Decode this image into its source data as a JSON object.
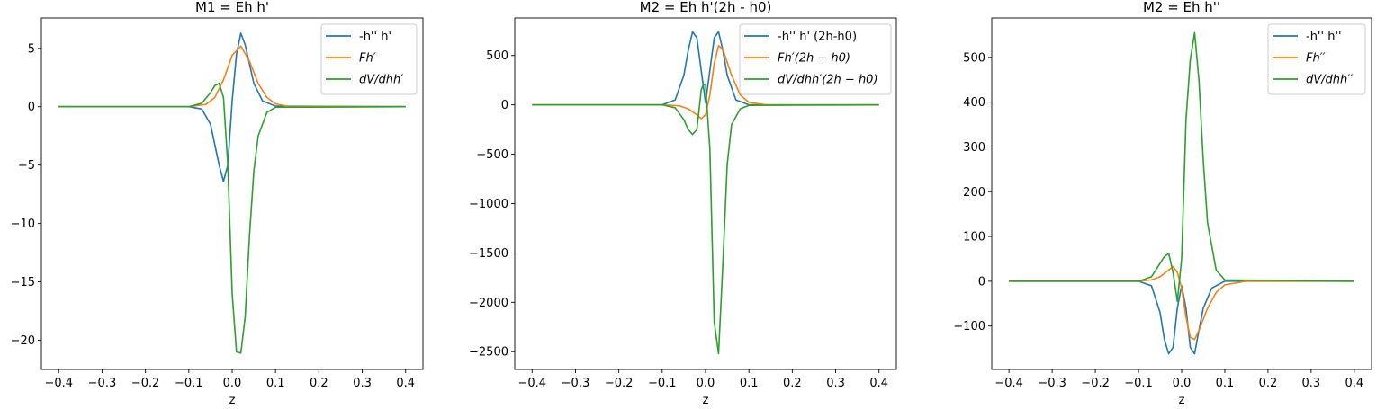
{
  "colors": {
    "series1": "#1f77b4",
    "series2": "#ff7f0e",
    "series3": "#2ca02c"
  },
  "chart_data": [
    {
      "type": "line",
      "title": "M1 = Eh h'",
      "xlabel": "z",
      "ylabel": "",
      "xlim": [
        -0.44,
        0.44
      ],
      "ylim": [
        -22.5,
        7.6
      ],
      "xticks": [
        -0.4,
        -0.3,
        -0.2,
        -0.1,
        0.0,
        0.1,
        0.2,
        0.3,
        0.4
      ],
      "xtick_labels": [
        "−0.4",
        "−0.3",
        "−0.2",
        "−0.1",
        "0.0",
        "0.1",
        "0.2",
        "0.3",
        "0.4"
      ],
      "yticks": [
        5,
        0,
        -5,
        -10,
        -15,
        -20
      ],
      "ytick_labels": [
        "5",
        "0",
        "−5",
        "−10",
        "−15",
        "−20"
      ],
      "legend_position": "top-right",
      "series": [
        {
          "name": "-h'' h'",
          "color": "#1f77b4",
          "x": [
            -0.4,
            -0.1,
            -0.07,
            -0.05,
            -0.03,
            -0.02,
            -0.01,
            0.0,
            0.01,
            0.02,
            0.03,
            0.05,
            0.07,
            0.1,
            0.4
          ],
          "y": [
            0,
            0,
            -0.2,
            -1.5,
            -5.0,
            -6.4,
            -5.0,
            0.5,
            4.5,
            6.3,
            5.3,
            2.0,
            0.5,
            0.05,
            0
          ]
        },
        {
          "name": "Fh′",
          "color": "#ff7f0e",
          "x": [
            -0.4,
            -0.1,
            -0.06,
            -0.04,
            -0.02,
            0.0,
            0.02,
            0.04,
            0.06,
            0.08,
            0.1,
            0.13,
            0.4
          ],
          "y": [
            0,
            0,
            0.2,
            0.8,
            2.3,
            4.4,
            5.2,
            3.9,
            2.0,
            0.8,
            0.25,
            0.02,
            0
          ]
        },
        {
          "name": "dV/dhh′",
          "color": "#2ca02c",
          "x": [
            -0.4,
            -0.1,
            -0.07,
            -0.05,
            -0.04,
            -0.03,
            -0.02,
            -0.01,
            0.0,
            0.01,
            0.02,
            0.03,
            0.04,
            0.05,
            0.06,
            0.08,
            0.1,
            0.4
          ],
          "y": [
            0,
            0,
            0.3,
            1.2,
            1.8,
            2.0,
            0.8,
            -5.0,
            -16.0,
            -21.0,
            -21.1,
            -18.0,
            -11.0,
            -5.5,
            -2.5,
            -0.5,
            -0.05,
            0
          ]
        }
      ]
    },
    {
      "type": "line",
      "title": "M2 = Eh h'(2h - h0)",
      "xlabel": "z",
      "ylabel": "",
      "xlim": [
        -0.44,
        0.44
      ],
      "ylim": [
        -2680,
        880
      ],
      "xticks": [
        -0.4,
        -0.3,
        -0.2,
        -0.1,
        0.0,
        0.1,
        0.2,
        0.3,
        0.4
      ],
      "xtick_labels": [
        "−0.4",
        "−0.3",
        "−0.2",
        "−0.1",
        "0.0",
        "0.1",
        "0.2",
        "0.3",
        "0.4"
      ],
      "yticks": [
        500,
        0,
        -500,
        -1000,
        -1500,
        -2000,
        -2500
      ],
      "ytick_labels": [
        "500",
        "0",
        "−500",
        "−1000",
        "−1500",
        "−2000",
        "−2500"
      ],
      "legend_position": "top-right",
      "series": [
        {
          "name": "-h'' h' (2h-h0)",
          "color": "#1f77b4",
          "x": [
            -0.4,
            -0.1,
            -0.07,
            -0.05,
            -0.04,
            -0.03,
            -0.02,
            -0.01,
            0.0,
            0.01,
            0.02,
            0.03,
            0.04,
            0.05,
            0.07,
            0.1,
            0.4
          ],
          "y": [
            0,
            0,
            50,
            300,
            550,
            740,
            680,
            350,
            20,
            350,
            680,
            740,
            550,
            300,
            50,
            0,
            0
          ]
        },
        {
          "name": "Fh′(2h − h0)",
          "color": "#ff7f0e",
          "x": [
            -0.4,
            -0.1,
            -0.06,
            -0.04,
            -0.02,
            -0.01,
            0.0,
            0.01,
            0.02,
            0.03,
            0.04,
            0.06,
            0.08,
            0.1,
            0.14,
            0.4
          ],
          "y": [
            0,
            0,
            -10,
            -40,
            -100,
            -140,
            -100,
            100,
            420,
            600,
            560,
            300,
            100,
            25,
            0,
            0
          ]
        },
        {
          "name": "dV/dhh′(2h − h0)",
          "color": "#2ca02c",
          "x": [
            -0.4,
            -0.1,
            -0.07,
            -0.05,
            -0.04,
            -0.03,
            -0.02,
            -0.01,
            -0.005,
            0.0,
            0.01,
            0.02,
            0.03,
            0.04,
            0.05,
            0.06,
            0.08,
            0.1,
            0.4
          ],
          "y": [
            0,
            0,
            -30,
            -150,
            -250,
            -300,
            -250,
            150,
            210,
            200,
            -450,
            -2200,
            -2520,
            -1600,
            -600,
            -200,
            -40,
            -5,
            0
          ]
        }
      ]
    },
    {
      "type": "line",
      "title": "M2 = Eh h''",
      "xlabel": "z",
      "ylabel": "",
      "xlim": [
        -0.44,
        0.44
      ],
      "ylim": [
        -197,
        588
      ],
      "xticks": [
        -0.4,
        -0.3,
        -0.2,
        -0.1,
        0.0,
        0.1,
        0.2,
        0.3,
        0.4
      ],
      "xtick_labels": [
        "−0.4",
        "−0.3",
        "−0.2",
        "−0.1",
        "0.0",
        "0.1",
        "0.2",
        "0.3",
        "0.4"
      ],
      "yticks": [
        500,
        400,
        300,
        200,
        100,
        0,
        -100
      ],
      "ytick_labels": [
        "500",
        "400",
        "300",
        "200",
        "100",
        "0",
        "−100"
      ],
      "legend_position": "top-right",
      "series": [
        {
          "name": "-h'' h''",
          "color": "#1f77b4",
          "x": [
            -0.4,
            -0.1,
            -0.07,
            -0.05,
            -0.04,
            -0.03,
            -0.02,
            -0.01,
            0.0,
            0.01,
            0.02,
            0.03,
            0.04,
            0.05,
            0.07,
            0.1,
            0.4
          ],
          "y": [
            0,
            0,
            -10,
            -70,
            -130,
            -162,
            -148,
            -60,
            -10,
            -60,
            -148,
            -162,
            -110,
            -60,
            -15,
            0,
            0
          ]
        },
        {
          "name": "Fh′′",
          "color": "#ff7f0e",
          "x": [
            -0.4,
            -0.1,
            -0.07,
            -0.05,
            -0.03,
            -0.02,
            -0.01,
            0.0,
            0.01,
            0.02,
            0.03,
            0.04,
            0.06,
            0.08,
            0.1,
            0.15,
            0.4
          ],
          "y": [
            0,
            0,
            3,
            10,
            25,
            33,
            20,
            -15,
            -80,
            -125,
            -130,
            -110,
            -60,
            -25,
            -8,
            0,
            0
          ]
        },
        {
          "name": "dV/dhh′′",
          "color": "#2ca02c",
          "x": [
            -0.4,
            -0.1,
            -0.07,
            -0.05,
            -0.04,
            -0.03,
            -0.02,
            -0.01,
            0.0,
            0.01,
            0.02,
            0.03,
            0.04,
            0.05,
            0.06,
            0.08,
            0.1,
            0.4
          ],
          "y": [
            0,
            0,
            10,
            40,
            55,
            62,
            20,
            -45,
            50,
            360,
            495,
            555,
            450,
            270,
            130,
            25,
            3,
            0
          ]
        }
      ]
    }
  ]
}
